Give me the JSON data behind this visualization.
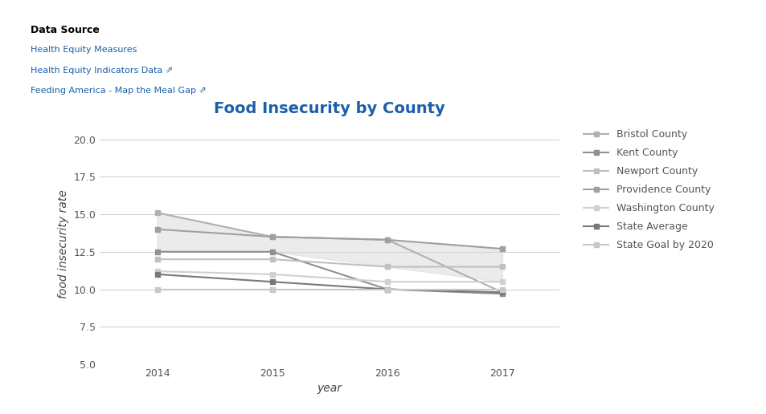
{
  "title": "Food Insecurity by County",
  "xlabel": "year",
  "ylabel": "food insecurity rate",
  "background_color": "#ffffff",
  "years": [
    2014,
    2015,
    2016,
    2017
  ],
  "series": {
    "Bristol County": [
      15.1,
      13.5,
      13.3,
      9.8
    ],
    "Kent County": [
      12.5,
      12.5,
      10.0,
      9.7
    ],
    "Newport County": [
      12.0,
      12.0,
      11.5,
      11.5
    ],
    "Providence County": [
      14.0,
      13.5,
      13.3,
      12.7
    ],
    "Washington County": [
      11.2,
      11.0,
      10.5,
      10.5
    ],
    "State Average": [
      11.0,
      10.5,
      10.0,
      9.8
    ],
    "State Goal by 2020": [
      10.0,
      10.0,
      10.0,
      10.0
    ]
  },
  "colors": {
    "Bristol County": "#b0b0b0",
    "Kent County": "#909090",
    "Newport County": "#c0c0c0",
    "Providence County": "#a0a0a0",
    "Washington County": "#d0d0d0",
    "State Average": "#787878",
    "State Goal by 2020": "#c8c8c8"
  },
  "fill_upper": [
    15.1,
    13.5,
    13.3,
    12.7
  ],
  "fill_lower": [
    12.5,
    12.5,
    11.5,
    10.5
  ],
  "fill_color": "#d8d8d8",
  "fill_alpha": 0.5,
  "ylim": [
    5.0,
    21.0
  ],
  "yticks": [
    5.0,
    7.5,
    10.0,
    12.5,
    15.0,
    17.5,
    20.0
  ],
  "title_color": "#1a5fa8",
  "title_fontsize": 14,
  "axis_label_fontsize": 10,
  "tick_fontsize": 9,
  "line_width": 1.5,
  "marker": "s",
  "marker_size": 4,
  "legend_fontsize": 9,
  "header_text": "Data Source",
  "links": [
    "Health Equity Measures",
    "Health Equity Indicators Data ⇗",
    "Feeding America - Map the Meal Gap ⇗"
  ],
  "link_color": "#1a5fa8"
}
